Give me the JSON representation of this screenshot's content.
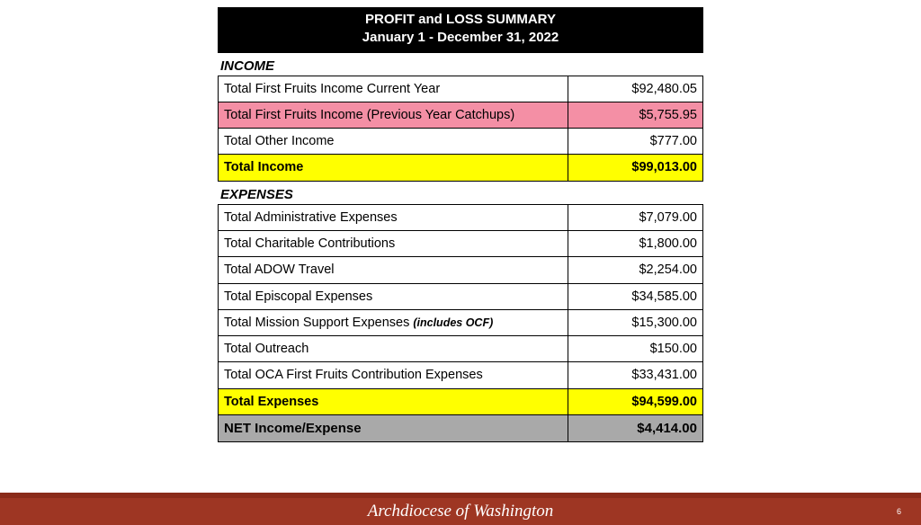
{
  "header": {
    "title1": "PROFIT and LOSS SUMMARY",
    "title2": "January 1 - December 31, 2022"
  },
  "income": {
    "label": "INCOME",
    "rows": [
      {
        "label": "Total First Fruits Income Current Year",
        "amount": "$92,480.05",
        "style": "plain"
      },
      {
        "label": "Total First Fruits Income (Previous Year Catchups)",
        "amount": "$5,755.95",
        "style": "pink"
      },
      {
        "label": "Total Other Income",
        "amount": "$777.00",
        "style": "plain"
      },
      {
        "label": "Total Income",
        "amount": "$99,013.00",
        "style": "yellow"
      }
    ]
  },
  "expenses": {
    "label": "EXPENSES",
    "rows": [
      {
        "label": "Total Administrative Expenses",
        "amount": "$7,079.00",
        "style": "plain"
      },
      {
        "label": "Total Charitable Contributions",
        "amount": "$1,800.00",
        "style": "plain"
      },
      {
        "label": "Total ADOW Travel",
        "amount": "$2,254.00",
        "style": "plain"
      },
      {
        "label": "Total Episcopal Expenses",
        "amount": "$34,585.00",
        "style": "plain"
      },
      {
        "label": "Total Mission Support Expenses ",
        "note": "(includes OCF)",
        "amount": "$15,300.00",
        "style": "plain"
      },
      {
        "label": "Total Outreach",
        "amount": "$150.00",
        "style": "plain"
      },
      {
        "label": "Total OCA First Fruits Contribution Expenses",
        "amount": "$33,431.00",
        "style": "plain"
      },
      {
        "label": "Total Expenses",
        "amount": "$94,599.00",
        "style": "yellow"
      },
      {
        "label": "NET Income/Expense",
        "amount": "$4,414.00",
        "style": "gray"
      }
    ]
  },
  "footer": {
    "org": "Archdiocese of Washington",
    "page": "6"
  },
  "colors": {
    "pink": "#f48fa5",
    "yellow": "#ffff00",
    "gray": "#a9a9a9",
    "footer_bar": "#9e3623",
    "footer_stripe": "#8a2b1a"
  }
}
